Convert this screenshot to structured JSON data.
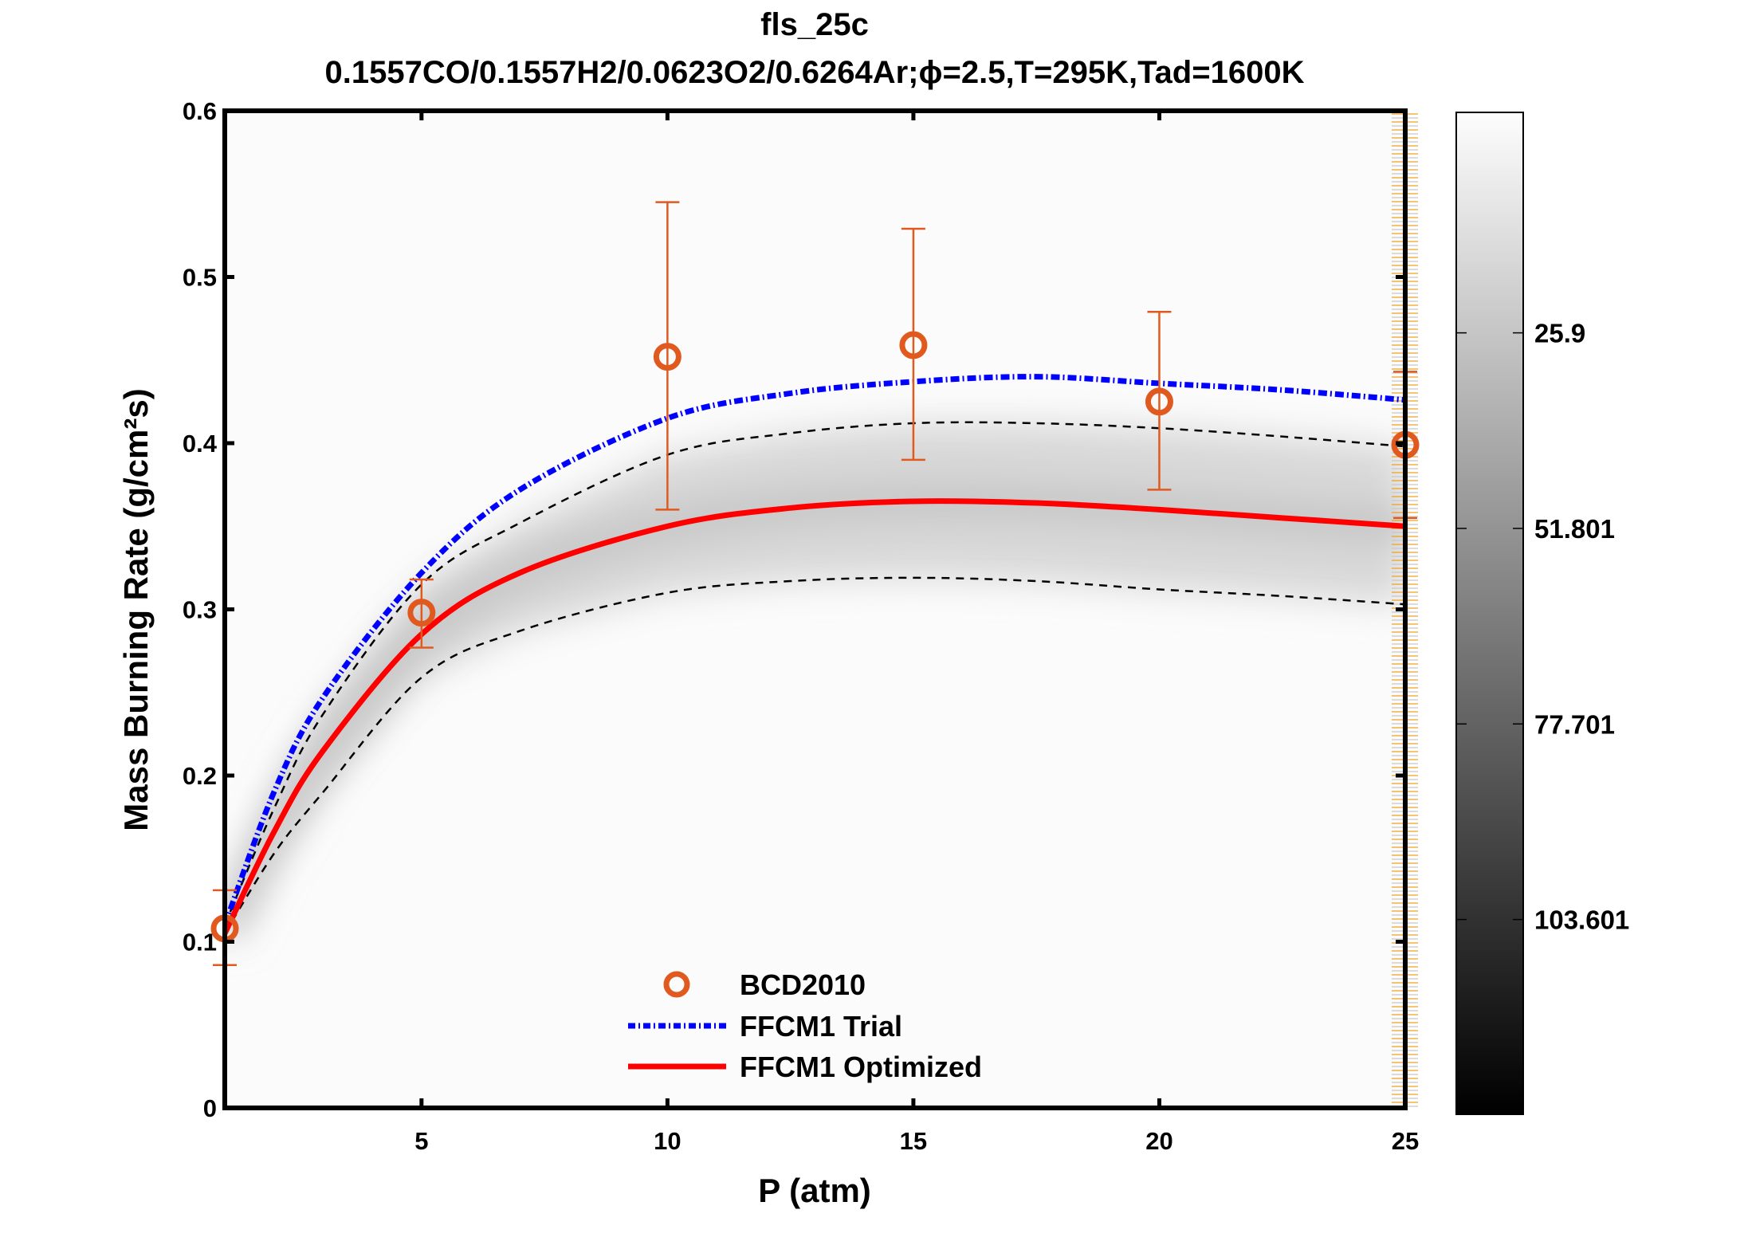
{
  "chart_data": {
    "type": "line",
    "title": "fls_25c",
    "subtitle": "0.1557CO/0.1557H2/0.0623O2/0.6264Ar;ϕ=2.5,T=295K,Tad=1600K",
    "xlabel": "P (atm)",
    "ylabel": "Mass Burning Rate (g/cm²s)",
    "xlim": [
      1,
      25
    ],
    "ylim": [
      0,
      0.6
    ],
    "xticks": [
      5,
      10,
      15,
      20,
      25
    ],
    "xtick_labels": [
      "5",
      "10",
      "15",
      "20",
      "25"
    ],
    "yticks": [
      0,
      0.1,
      0.2,
      0.3,
      0.4,
      0.5,
      0.6
    ],
    "ytick_labels": [
      "0",
      "0.1",
      "0.2",
      "0.3",
      "0.4",
      "0.5",
      "0.6"
    ],
    "grid": false,
    "legend_position": "bottom-center",
    "x": [
      1,
      2,
      3,
      5,
      7,
      10,
      12.5,
      15,
      17.5,
      20,
      22.5,
      25
    ],
    "series": [
      {
        "name": "FFCM1 Trial",
        "style": "dash-dot",
        "color": "#0000ff",
        "values": [
          0.11,
          0.19,
          0.247,
          0.322,
          0.372,
          0.415,
          0.43,
          0.437,
          0.44,
          0.436,
          0.432,
          0.426
        ]
      },
      {
        "name": "FFCM1 Optimized",
        "style": "solid",
        "color": "#ff0000",
        "values": [
          0.105,
          0.166,
          0.215,
          0.285,
          0.322,
          0.35,
          0.361,
          0.365,
          0.364,
          0.36,
          0.355,
          0.35
        ]
      },
      {
        "style": "dashed",
        "color": "#000000",
        "role": "upper uncertainty bound",
        "values": [
          0.11,
          0.18,
          0.237,
          0.315,
          0.352,
          0.393,
          0.406,
          0.412,
          0.412,
          0.409,
          0.404,
          0.398
        ]
      },
      {
        "style": "dashed",
        "color": "#000000",
        "role": "lower uncertainty bound",
        "values": [
          0.105,
          0.153,
          0.19,
          0.259,
          0.287,
          0.31,
          0.317,
          0.319,
          0.317,
          0.312,
          0.308,
          0.303
        ]
      }
    ],
    "experimental": {
      "name": "BCD2010",
      "marker": "circle-open",
      "color": "#e05a20",
      "x": [
        1,
        5,
        10,
        15,
        20,
        25
      ],
      "y": [
        0.108,
        0.298,
        0.452,
        0.459,
        0.425,
        0.399
      ],
      "err_low": [
        0.086,
        0.277,
        0.36,
        0.39,
        0.372,
        0.355
      ],
      "err_high": [
        0.131,
        0.318,
        0.545,
        0.529,
        0.479,
        0.443
      ]
    },
    "colorbar": {
      "colormap": "gray (white to black)",
      "clim": [
        -3.3,
        129.4
      ],
      "ticks": [
        25.9,
        51.801,
        77.701,
        103.601
      ],
      "tick_labels": [
        "25.9",
        "51.801",
        "77.701",
        "103.601"
      ]
    },
    "legend": [
      "BCD2010",
      "FFCM1 Trial",
      "FFCM1 Optimized"
    ]
  }
}
